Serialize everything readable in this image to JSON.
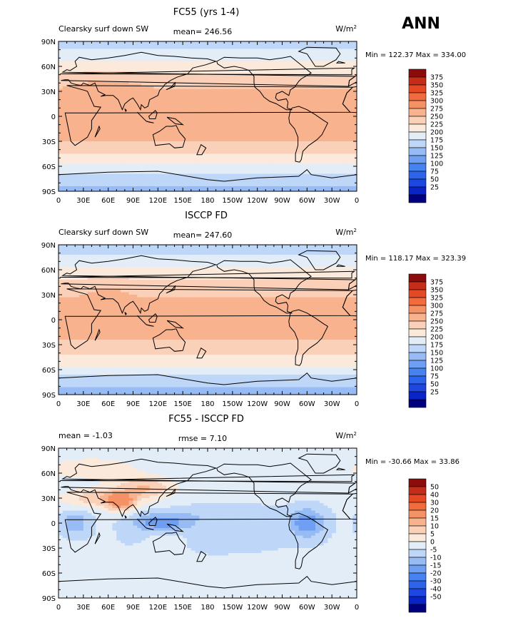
{
  "season": "ANN",
  "xticks": [
    "0",
    "30E",
    "60E",
    "90E",
    "120E",
    "150E",
    "180",
    "150W",
    "120W",
    "90W",
    "60W",
    "30W",
    "0"
  ],
  "yticks": [
    "90N",
    "60N",
    "30N",
    "0",
    "30S",
    "60S",
    "90S"
  ],
  "units": "W/m",
  "units_exp": "2",
  "colors": {
    "absolute": [
      "#00007f",
      "#0a23c8",
      "#1e46e1",
      "#2d64eb",
      "#4682f0",
      "#6e9ff2",
      "#96bbf5",
      "#bed6f7",
      "#e3edf8",
      "#fbeadc",
      "#fad1b8",
      "#f8b38e",
      "#f59265",
      "#f26b3d",
      "#e54825",
      "#c52d1a",
      "#8c0c0c"
    ],
    "diff": [
      "#00007f",
      "#0a23c8",
      "#1e46e1",
      "#2d64eb",
      "#4682f0",
      "#6e9ff2",
      "#96bbf5",
      "#bed6f7",
      "#e3edf8",
      "#fbeadc",
      "#fad1b8",
      "#f8b38e",
      "#f59265",
      "#f26b3d",
      "#e54825",
      "#c52d1a",
      "#8c0c0c"
    ],
    "coast": "#000000"
  },
  "chart_data": [
    {
      "type": "heatmap",
      "id": "model",
      "title": "FC55 (yrs 1-4)",
      "left_label": "Clearsky surf down SW",
      "center_label": "mean= 246.56",
      "minmax_label": "Min = 122.37 Max = 334.00",
      "legend_levels": [
        375,
        350,
        325,
        300,
        275,
        250,
        225,
        200,
        175,
        150,
        125,
        100,
        75,
        50,
        25
      ],
      "field": {
        "eq": 284,
        "pole_n": 152,
        "pole_s": 130,
        "scale_n": 80,
        "scale_s": 75,
        "offset": 3
      },
      "anomalies": [
        {
          "lon": 60,
          "lat": 33,
          "rlon": 25,
          "rlat": 8,
          "amp": 22
        },
        {
          "lon": 135,
          "lat": 0,
          "rlon": 40,
          "rlat": 12,
          "amp": 8
        },
        {
          "lon": 300,
          "lat": -10,
          "rlon": 20,
          "rlat": 12,
          "amp": 10
        }
      ],
      "xlim": [
        0,
        360
      ],
      "ylim": [
        -90,
        90
      ]
    },
    {
      "type": "heatmap",
      "id": "obs",
      "title": "ISCCP FD",
      "left_label": "Clearsky surf down SW",
      "center_label": "mean= 247.60",
      "minmax_label": "Min = 118.17 Max = 323.39",
      "legend_levels": [
        375,
        350,
        325,
        300,
        275,
        250,
        225,
        200,
        175,
        150,
        125,
        100,
        75,
        50,
        25
      ],
      "field": {
        "eq": 282,
        "pole_n": 150,
        "pole_s": 128,
        "scale_n": 80,
        "scale_s": 75,
        "offset": 0
      },
      "anomalies": [
        {
          "lon": 60,
          "lat": 35,
          "rlon": 20,
          "rlat": 8,
          "amp": 10
        },
        {
          "lon": 135,
          "lat": 0,
          "rlon": 45,
          "rlat": 10,
          "amp": 12
        },
        {
          "lon": 240,
          "lat": 0,
          "rlon": 40,
          "rlat": 10,
          "amp": 10
        }
      ],
      "xlim": [
        0,
        360
      ],
      "ylim": [
        -90,
        90
      ]
    },
    {
      "type": "heatmap",
      "id": "diff",
      "title": "FC55 - ISCCP FD",
      "left_label": "mean =   -1.03",
      "center_label": "rmse =    7.10",
      "minmax_label": "Min = -30.66 Max =   33.86",
      "legend_levels": [
        50,
        40,
        30,
        20,
        15,
        10,
        5,
        0,
        -5,
        -10,
        -15,
        -20,
        -30,
        -40,
        -50
      ],
      "field": {
        "base": 1
      },
      "anomalies": [
        {
          "lon": 45,
          "lat": 30,
          "rlon": 30,
          "rlat": 8,
          "amp": 12
        },
        {
          "lon": 75,
          "lat": 25,
          "rlon": 12,
          "rlat": 8,
          "amp": 20
        },
        {
          "lon": 105,
          "lat": 42,
          "rlon": 25,
          "rlat": 10,
          "amp": 14
        },
        {
          "lon": 20,
          "lat": 0,
          "rlon": 12,
          "rlat": 10,
          "amp": -10
        },
        {
          "lon": 125,
          "lat": 0,
          "rlon": 25,
          "rlat": 8,
          "amp": -14
        },
        {
          "lon": 200,
          "lat": 10,
          "rlon": 50,
          "rlat": 8,
          "amp": -5
        },
        {
          "lon": 300,
          "lat": 0,
          "rlon": 15,
          "rlat": 12,
          "amp": -15
        },
        {
          "lon": 180,
          "lat": -20,
          "rlon": 60,
          "rlat": 10,
          "amp": -5
        },
        {
          "lon": 40,
          "lat": 65,
          "rlon": 40,
          "rlat": 10,
          "amp": 8
        },
        {
          "lon": 135,
          "lat": -20,
          "rlon": 20,
          "rlat": 10,
          "amp": 6
        }
      ],
      "xlim": [
        0,
        360
      ],
      "ylim": [
        -90,
        90
      ]
    }
  ]
}
